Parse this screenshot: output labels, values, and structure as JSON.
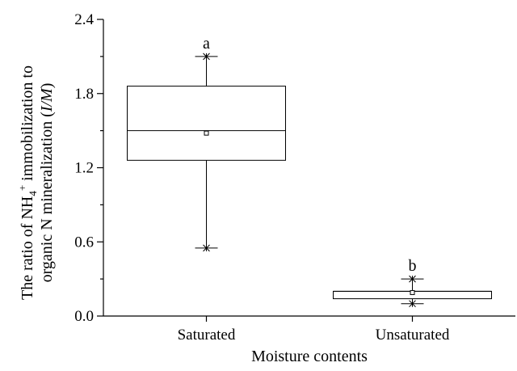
{
  "chart_data": {
    "type": "box",
    "xlabel": "Moisture contents",
    "ylabel_line1_parts": [
      "The ratio of NH",
      "4",
      "+",
      " immobilization to"
    ],
    "ylabel_line2_parts": [
      "organic N mineralization (",
      "I/M",
      ")"
    ],
    "ylim": [
      0.0,
      2.4
    ],
    "yticks": [
      "0.0",
      "0.6",
      "1.2",
      "1.8",
      "2.4"
    ],
    "categories": [
      "Saturated",
      "Unsaturated"
    ],
    "boxes": [
      {
        "category": "Saturated",
        "min": 0.55,
        "q1": 1.26,
        "median": 1.5,
        "mean": 1.48,
        "q3": 1.86,
        "max": 2.1,
        "letter": "a"
      },
      {
        "category": "Unsaturated",
        "min": 0.1,
        "q1": 0.14,
        "median": 0.2,
        "mean": 0.19,
        "q3": 0.2,
        "max": 0.3,
        "letter": "b"
      }
    ]
  }
}
